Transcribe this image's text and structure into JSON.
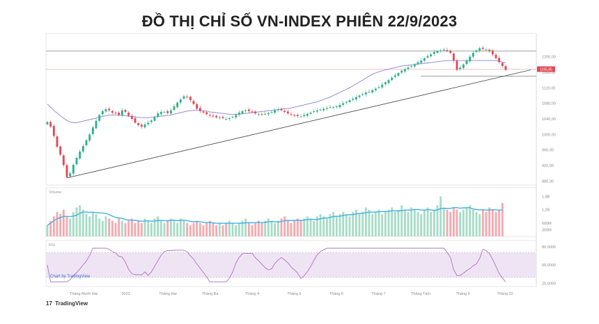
{
  "title": "ĐỒ THỊ CHỈ SỐ VN-INDEX PHIÊN 22/9/2023",
  "branding": {
    "logo": "17",
    "text": "TradingView"
  },
  "watermark": "Chart by TradingView",
  "price_tag": "1165,85",
  "colors": {
    "up": "#2fb08a",
    "down": "#e04a55",
    "ma": "#8a80d6",
    "trend": "#444444",
    "vol_up": "#a7dcc7",
    "vol_down": "#f4a9b0",
    "vol_ma": "#3fb2e0",
    "rsi_line": "#b070c0",
    "rsi_bg": "#efe4f4",
    "hline": "#e9a4ac"
  },
  "chart_data": [
    {
      "type": "candlestick",
      "title": "",
      "y_ticks": [
        "1200,00",
        "1160,00",
        "1120,00",
        "1080,00",
        "1040,00",
        "1000,00",
        "960,00",
        "920,00",
        "880,00"
      ],
      "ylim": [
        870,
        1260
      ],
      "x_ticks": [
        "Tháng Mười Hai",
        "2023",
        "Tháng Hai",
        "Tháng Ba",
        "Tháng 4",
        "Tháng 5",
        "Tháng 6",
        "Tháng 7",
        "Tháng Tám",
        "Tháng 9",
        "Tháng 10"
      ],
      "close": [
        1032,
        1020,
        996,
        968,
        948,
        921,
        890,
        900,
        922,
        940,
        956,
        970,
        985,
        1000,
        1018,
        1035,
        1050,
        1060,
        1065,
        1062,
        1056,
        1054,
        1050,
        1062,
        1058,
        1048,
        1040,
        1030,
        1024,
        1020,
        1026,
        1030,
        1036,
        1044,
        1054,
        1058,
        1058,
        1055,
        1062,
        1072,
        1082,
        1090,
        1098,
        1096,
        1088,
        1078,
        1066,
        1060,
        1056,
        1052,
        1048,
        1046,
        1044,
        1044,
        1042,
        1040,
        1042,
        1045,
        1050,
        1056,
        1060,
        1062,
        1060,
        1058,
        1054,
        1052,
        1051,
        1053,
        1055,
        1058,
        1062,
        1064,
        1062,
        1058,
        1054,
        1050,
        1048,
        1047,
        1046,
        1050,
        1053,
        1056,
        1060,
        1062,
        1064,
        1066,
        1068,
        1070,
        1070,
        1072,
        1076,
        1080,
        1084,
        1088,
        1092,
        1096,
        1100,
        1104,
        1108,
        1110,
        1114,
        1118,
        1122,
        1128,
        1134,
        1140,
        1146,
        1152,
        1158,
        1164,
        1168,
        1172,
        1176,
        1180,
        1186,
        1190,
        1196,
        1202,
        1206,
        1212,
        1214,
        1216,
        1218,
        1214,
        1210,
        1190,
        1166,
        1172,
        1180,
        1190,
        1200,
        1210,
        1216,
        1222,
        1220,
        1218,
        1214,
        1206,
        1196,
        1186,
        1176,
        1166
      ],
      "ma_start": [
        1078,
        1070,
        1062,
        1055,
        1048,
        1042,
        1036,
        1032,
        1030,
        1030,
        1032,
        1034,
        1036,
        1038,
        1040,
        1042,
        1044,
        1046,
        1048,
        1050,
        1050,
        1050,
        1050,
        1049,
        1048,
        1047,
        1046,
        1045,
        1044,
        1043,
        1043,
        1043,
        1044,
        1045,
        1046,
        1047,
        1048,
        1049,
        1050,
        1052,
        1054,
        1056,
        1058,
        1060,
        1061,
        1062,
        1062,
        1062,
        1061,
        1060,
        1058,
        1057,
        1056,
        1055,
        1054,
        1053,
        1052,
        1052,
        1052,
        1052,
        1053,
        1054,
        1055,
        1056,
        1057,
        1058,
        1059,
        1060,
        1061,
        1062,
        1063,
        1064,
        1065,
        1066,
        1067,
        1068,
        1070,
        1072,
        1074,
        1076,
        1078,
        1080,
        1082,
        1084,
        1087,
        1090,
        1093,
        1096,
        1100,
        1104,
        1108,
        1112,
        1116,
        1120,
        1125,
        1130,
        1135,
        1140,
        1145,
        1150,
        1155,
        1158,
        1161,
        1164,
        1166,
        1168,
        1170,
        1172,
        1174,
        1176,
        1177,
        1178,
        1179,
        1180,
        1181,
        1182,
        1183,
        1184,
        1185,
        1186,
        1187,
        1188,
        1189,
        1190,
        1190,
        1190,
        1190,
        1190,
        1190,
        1190,
        1190,
        1190,
        1190,
        1190,
        1190,
        1190,
        1190,
        1190,
        1190,
        1188,
        1186,
        1184
      ]
    },
    {
      "type": "bar",
      "title": "",
      "series_label": "Volume",
      "y_ticks": [
        "1,8B",
        "1,2B",
        "600M",
        "300M"
      ],
      "values": [
        0.5,
        0.7,
        0.9,
        1.1,
        1.0,
        1.2,
        0.9,
        0.8,
        1.1,
        1.3,
        1.4,
        1.2,
        1.0,
        0.9,
        1.1,
        1.0,
        0.8,
        0.7,
        0.9,
        0.8,
        0.7,
        0.6,
        0.8,
        0.7,
        0.6,
        0.7,
        0.8,
        0.6,
        0.7,
        0.6,
        0.8,
        0.7,
        0.6,
        0.8,
        0.9,
        0.7,
        0.6,
        0.7,
        0.8,
        0.7,
        0.6,
        0.8,
        0.7,
        0.6,
        0.5,
        0.6,
        0.7,
        0.6,
        0.5,
        0.6,
        0.7,
        0.6,
        0.5,
        0.6,
        0.5,
        0.6,
        0.7,
        0.6,
        0.5,
        0.6,
        0.7,
        0.8,
        0.6,
        0.5,
        0.6,
        0.7,
        0.6,
        0.7,
        0.8,
        0.7,
        0.6,
        0.7,
        0.8,
        0.9,
        0.7,
        0.6,
        0.7,
        0.8,
        0.7,
        0.8,
        0.9,
        0.8,
        0.7,
        0.9,
        1.0,
        0.9,
        0.8,
        1.0,
        1.1,
        0.9,
        1.0,
        1.1,
        1.0,
        0.9,
        1.1,
        1.2,
        1.0,
        1.1,
        1.3,
        1.2,
        1.0,
        1.1,
        1.2,
        1.0,
        1.1,
        1.2,
        1.3,
        1.1,
        1.2,
        1.4,
        1.2,
        1.1,
        1.3,
        1.2,
        1.1,
        1.0,
        1.2,
        1.3,
        1.1,
        1.2,
        1.4,
        1.8,
        1.3,
        1.2,
        1.1,
        1.3,
        1.2,
        1.1,
        1.2,
        1.3,
        1.4,
        1.2,
        1.1,
        1.0,
        1.2,
        1.1,
        1.3,
        1.2,
        1.1,
        1.2,
        1.5
      ],
      "ylim": [
        0,
        2.0
      ]
    },
    {
      "type": "line",
      "title": "",
      "series_label": "RSI",
      "y_ticks": [
        "80,0000",
        "50,0000",
        "20,0000"
      ],
      "ylim": [
        15,
        90
      ],
      "upper": 70,
      "lower": 30
    }
  ]
}
